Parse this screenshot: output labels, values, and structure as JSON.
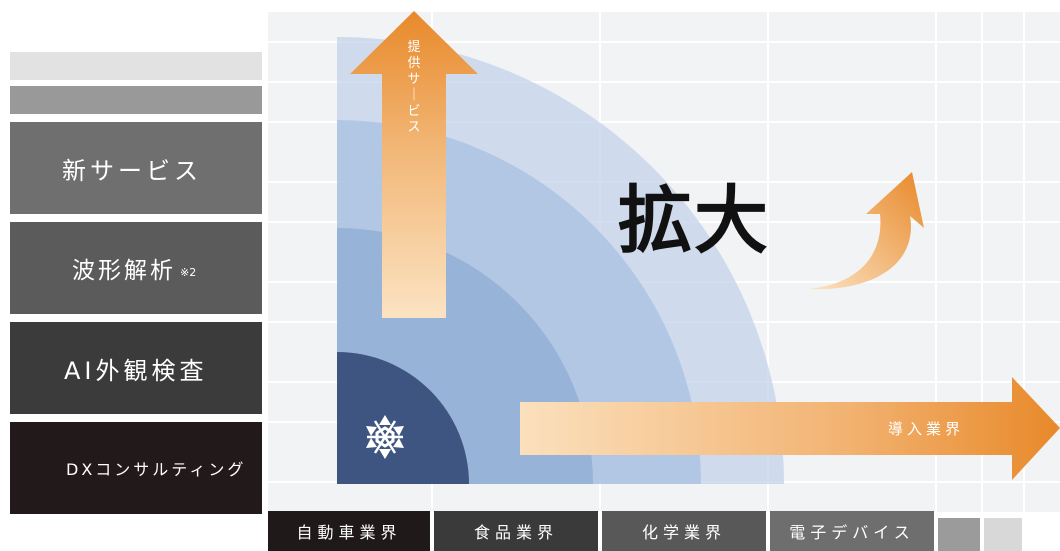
{
  "services": [
    {
      "label": "新サービス",
      "note": ""
    },
    {
      "label": "波形解析",
      "note": "※2"
    },
    {
      "label": "AI外観検査",
      "note": ""
    },
    {
      "label": "DXコンサルティング",
      "note": ""
    }
  ],
  "industries": [
    "自動車業界",
    "食品業界",
    "化学業界",
    "電子デバイス"
  ],
  "vertical_arrow_label": "提供サービス",
  "horizontal_arrow_label": "導入業界",
  "center_text": "拡大",
  "logo_icon": "company-logo-icon",
  "colors": {
    "accent_orange": "#e8892a",
    "arrow_light": "#f5c991",
    "core_navy": "#3f5581",
    "arc_blue": "#97b4d8"
  }
}
